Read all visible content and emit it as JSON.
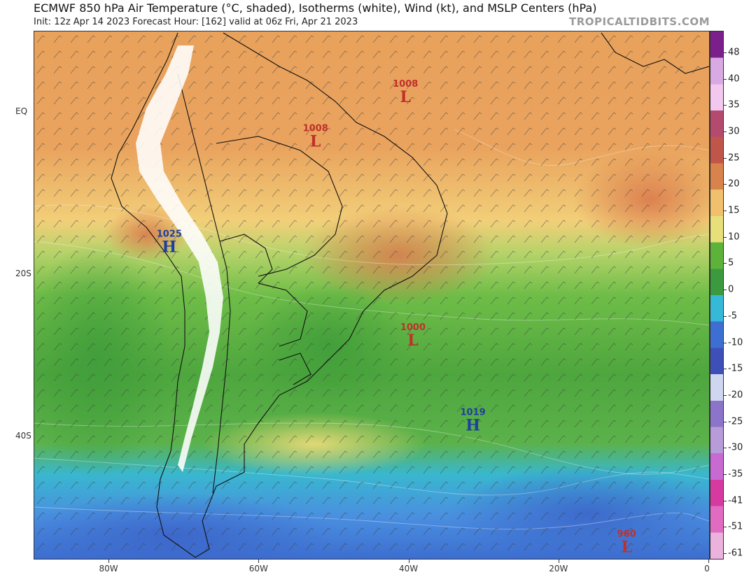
{
  "header": {
    "title": "ECMWF 850 hPa Air Temperature (°C, shaded), Isotherms (white), Wind (kt), and MSLP Centers (hPa)",
    "subtitle": "Init: 12z Apr 14 2023   Forecast Hour: [162]   valid at 06z Fri, Apr 21 2023",
    "credit": "TROPICALTIDBITS.COM"
  },
  "map": {
    "region": "South America",
    "lon_range": [
      -90,
      0
    ],
    "lat_range": [
      -55,
      10
    ],
    "lat_labels": [
      {
        "lat": 0,
        "text": "EQ"
      },
      {
        "lat": -20,
        "text": "20S"
      },
      {
        "lat": -40,
        "text": "40S"
      }
    ],
    "lon_labels": [
      {
        "lon": -80,
        "text": "80W"
      },
      {
        "lon": -60,
        "text": "60W"
      },
      {
        "lon": -40,
        "text": "40W"
      },
      {
        "lon": -20,
        "text": "20W"
      },
      {
        "lon": 0,
        "text": "0"
      }
    ],
    "pressure_centers": [
      {
        "type": "L",
        "value": "1008",
        "lon": -40.5,
        "lat": 2.0,
        "color": "#c0302a"
      },
      {
        "type": "L",
        "value": "1008",
        "lon": -52.5,
        "lat": -3.5,
        "color": "#c0302a"
      },
      {
        "type": "H",
        "value": "1025",
        "lon": -72.0,
        "lat": -16.5,
        "color": "#1f3f9e"
      },
      {
        "type": "L",
        "value": "1000",
        "lon": -39.5,
        "lat": -28.0,
        "color": "#c0302a"
      },
      {
        "type": "H",
        "value": "1019",
        "lon": -31.5,
        "lat": -38.5,
        "color": "#1f3f9e"
      },
      {
        "type": "L",
        "value": "960",
        "lon": -11.0,
        "lat": -53.5,
        "color": "#c0302a"
      }
    ]
  },
  "colorbar": {
    "labels": [
      "48",
      "40",
      "35",
      "30",
      "25",
      "20",
      "15",
      "10",
      "5",
      "0",
      "-5",
      "-10",
      "-15",
      "-20",
      "-25",
      "-30",
      "-35",
      "-41",
      "-51",
      "-61"
    ],
    "colors": [
      "#7a1f8c",
      "#d8a9e3",
      "#f2c8ee",
      "#b44b6e",
      "#c0554a",
      "#d8834c",
      "#f0c06c",
      "#e7e07a",
      "#5db33a",
      "#3b9a3d",
      "#36b9d6",
      "#3c6fd1",
      "#3f4fb8",
      "#cfd6ef",
      "#8b74c9",
      "#b89bd9",
      "#c86ad1",
      "#d63aa0",
      "#e06bc1",
      "#eab2dd"
    ]
  }
}
